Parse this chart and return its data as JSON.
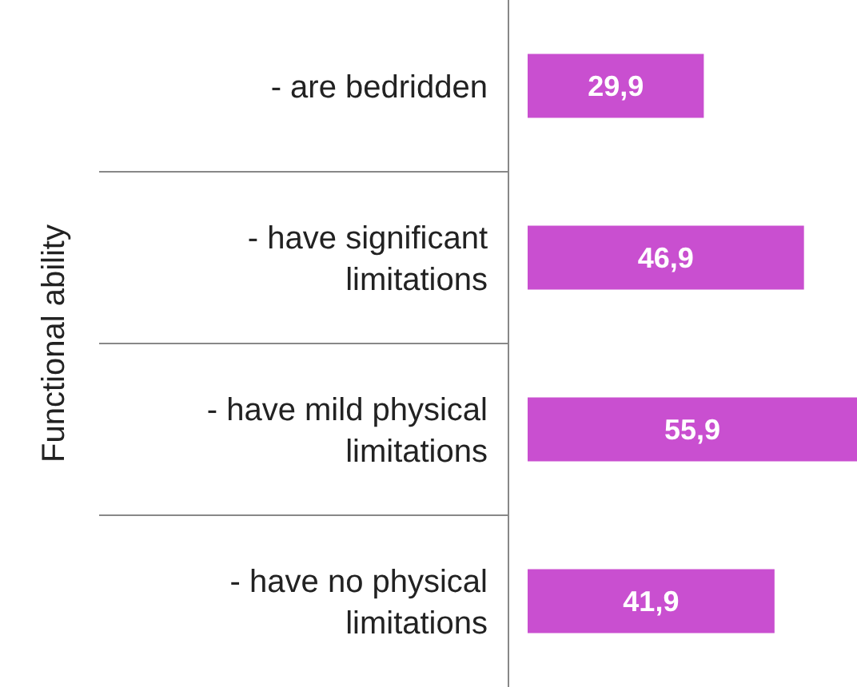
{
  "chart_data": {
    "type": "bar",
    "orientation": "horizontal",
    "ylabel": "Functional ability",
    "categories": [
      "- are bedridden",
      "- have significant limitations",
      "- have mild physical limitations",
      "- have no physical limitations"
    ],
    "values": [
      29.9,
      46.9,
      55.9,
      41.9
    ],
    "color": "#c94fd0",
    "data_labels": true,
    "value_labels": [
      "29,9",
      "46,9",
      "55,9",
      "41,9"
    ]
  }
}
